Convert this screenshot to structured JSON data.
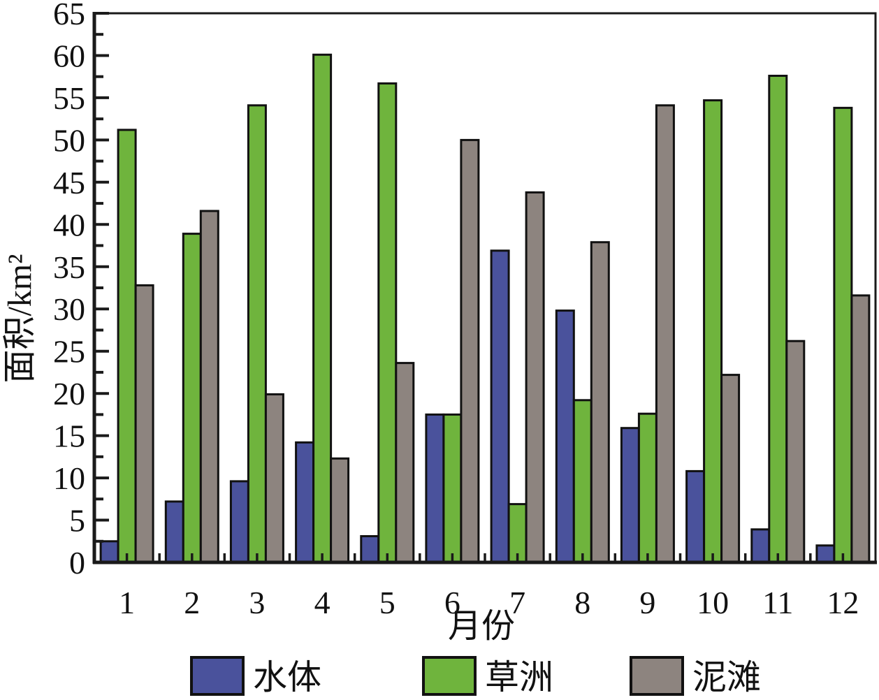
{
  "chart_data": {
    "type": "bar",
    "title": "",
    "xlabel": "月份",
    "ylabel": "面积/km²",
    "categories": [
      "1",
      "2",
      "3",
      "4",
      "5",
      "6",
      "7",
      "8",
      "9",
      "10",
      "11",
      "12"
    ],
    "series": [
      {
        "name": "水体",
        "color": "#4A529C",
        "values": [
          2.5,
          7.2,
          9.6,
          14.2,
          3.1,
          17.5,
          36.9,
          29.8,
          15.9,
          10.8,
          3.9,
          2.0
        ]
      },
      {
        "name": "草洲",
        "color": "#6FB43D",
        "values": [
          51.2,
          38.9,
          54.1,
          60.1,
          56.7,
          17.5,
          6.9,
          19.2,
          17.6,
          54.7,
          57.6,
          53.8
        ]
      },
      {
        "name": "泥滩",
        "color": "#8D847F",
        "values": [
          32.8,
          41.6,
          19.9,
          12.3,
          23.6,
          50.0,
          43.8,
          37.9,
          54.1,
          22.2,
          26.2,
          31.6
        ]
      }
    ],
    "ylim": [
      0,
      65
    ],
    "y_major_step": 5,
    "y_minor_step": 2.5,
    "y_tick_labels": [
      "0",
      "5",
      "10",
      "15",
      "20",
      "25",
      "30",
      "35",
      "40",
      "45",
      "50",
      "55",
      "60",
      "65"
    ],
    "grid": "off",
    "legend_position": "bottom",
    "axis_color": "#1a1a1a",
    "bar_border_color": "#111111"
  }
}
